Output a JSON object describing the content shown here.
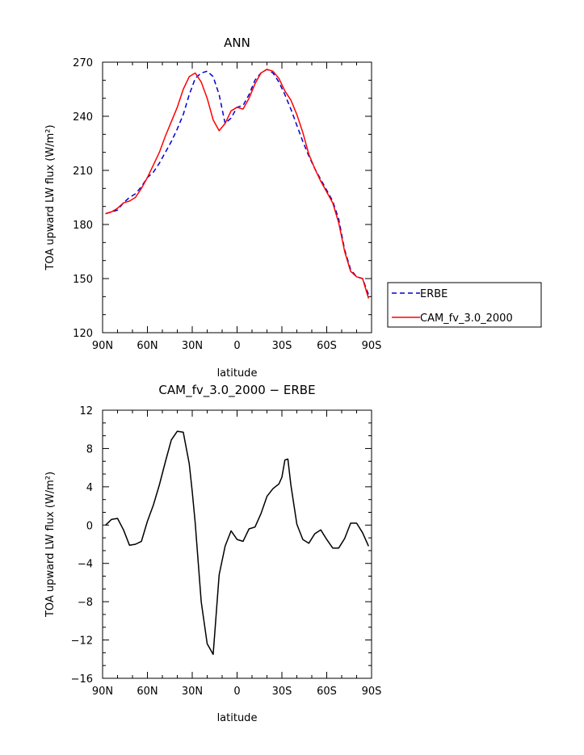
{
  "chart_data": [
    {
      "type": "line",
      "title": "ANN",
      "xlabel": "latitude",
      "ylabel": "TOA upward LW flux (W/m²)",
      "xlim": [
        -90,
        90
      ],
      "ylim": [
        120,
        270
      ],
      "x_ticks": [
        -90,
        -60,
        -30,
        0,
        30,
        60,
        90
      ],
      "x_tick_labels": [
        "90N",
        "60N",
        "30N",
        "0",
        "30S",
        "60S",
        "90S"
      ],
      "y_ticks": [
        120,
        150,
        180,
        210,
        240,
        270
      ],
      "y_tick_labels": [
        "120",
        "150",
        "180",
        "210",
        "240",
        "270"
      ],
      "legend": "outside-right",
      "series": [
        {
          "name": "ERBE",
          "color": "#0000cc",
          "dash": "dashed",
          "x": [
            -88,
            -84,
            -80,
            -76,
            -72,
            -68,
            -64,
            -60,
            -56,
            -52,
            -48,
            -44,
            -40,
            -36,
            -32,
            -28,
            -24,
            -20,
            -16,
            -12,
            -8,
            -4,
            0,
            4,
            8,
            12,
            16,
            20,
            24,
            28,
            32,
            36,
            40,
            44,
            48,
            52,
            56,
            60,
            64,
            68,
            72,
            76,
            80,
            84,
            88
          ],
          "y": [
            186,
            187,
            188,
            192,
            195,
            197,
            201,
            206,
            209,
            214,
            220,
            226,
            233,
            241,
            252,
            261,
            264,
            265,
            262,
            252,
            236,
            239,
            245,
            246,
            252,
            260,
            264,
            266,
            264,
            259,
            252,
            244,
            235,
            226,
            218,
            211,
            205,
            199,
            193,
            183,
            166,
            155,
            151,
            150,
            141
          ]
        },
        {
          "name": "CAM_fv_3.0_2000",
          "color": "#ff0000",
          "dash": "solid",
          "x": [
            -88,
            -84,
            -80,
            -76,
            -72,
            -68,
            -64,
            -60,
            -56,
            -52,
            -48,
            -44,
            -40,
            -36,
            -32,
            -28,
            -24,
            -20,
            -16,
            -12,
            -8,
            -4,
            0,
            4,
            8,
            12,
            16,
            20,
            24,
            28,
            32,
            36,
            40,
            44,
            48,
            52,
            56,
            60,
            64,
            68,
            72,
            76,
            80,
            84,
            88
          ],
          "y": [
            186,
            187,
            189,
            192,
            193,
            195,
            200,
            206,
            213,
            220,
            229,
            237,
            245,
            255,
            262,
            264,
            259,
            250,
            238,
            232,
            236,
            243,
            245,
            244,
            250,
            258,
            264,
            266,
            265,
            261,
            254,
            249,
            241,
            231,
            219,
            211,
            204,
            198,
            192,
            181,
            165,
            154,
            151,
            150,
            139
          ]
        }
      ]
    },
    {
      "type": "line",
      "title": "CAM_fv_3.0_2000 − ERBE",
      "xlabel": "latitude",
      "ylabel": "TOA upward LW flux (W/m²)",
      "xlim": [
        -90,
        90
      ],
      "ylim": [
        -16,
        12
      ],
      "x_ticks": [
        -90,
        -60,
        -30,
        0,
        30,
        60,
        90
      ],
      "x_tick_labels": [
        "90N",
        "60N",
        "30N",
        "0",
        "30S",
        "60S",
        "90S"
      ],
      "y_ticks": [
        -16,
        -12,
        -8,
        -4,
        0,
        4,
        8,
        12
      ],
      "y_tick_labels": [
        "−16",
        "−12",
        "−8",
        "−4",
        "0",
        "4",
        "8",
        "12"
      ],
      "series": [
        {
          "color": "#000000",
          "dash": "solid",
          "x": [
            -88,
            -84,
            -80,
            -76,
            -72,
            -68,
            -64,
            -60,
            -56,
            -52,
            -48,
            -44,
            -40,
            -36,
            -32,
            -30,
            -28,
            -24,
            -20,
            -16,
            -12,
            -8,
            -4,
            0,
            4,
            8,
            12,
            16,
            20,
            24,
            28,
            30,
            32,
            34,
            36,
            40,
            44,
            48,
            52,
            56,
            60,
            64,
            68,
            72,
            76,
            80,
            84,
            88
          ],
          "y": [
            0,
            0.6,
            0.7,
            -0.5,
            -2.1,
            -2.0,
            -1.7,
            0.4,
            2.1,
            4.2,
            6.6,
            8.9,
            9.8,
            9.7,
            6.4,
            3.5,
            0.2,
            -8.0,
            -12.4,
            -13.5,
            -5.2,
            -2.2,
            -0.6,
            -1.5,
            -1.7,
            -0.4,
            -0.2,
            1.2,
            3.0,
            3.8,
            4.3,
            5.0,
            6.8,
            6.9,
            4.2,
            0.1,
            -1.5,
            -1.9,
            -0.9,
            -0.5,
            -1.5,
            -2.4,
            -2.4,
            -1.4,
            0.2,
            0.2,
            -0.8,
            -2.2
          ]
        }
      ]
    }
  ]
}
